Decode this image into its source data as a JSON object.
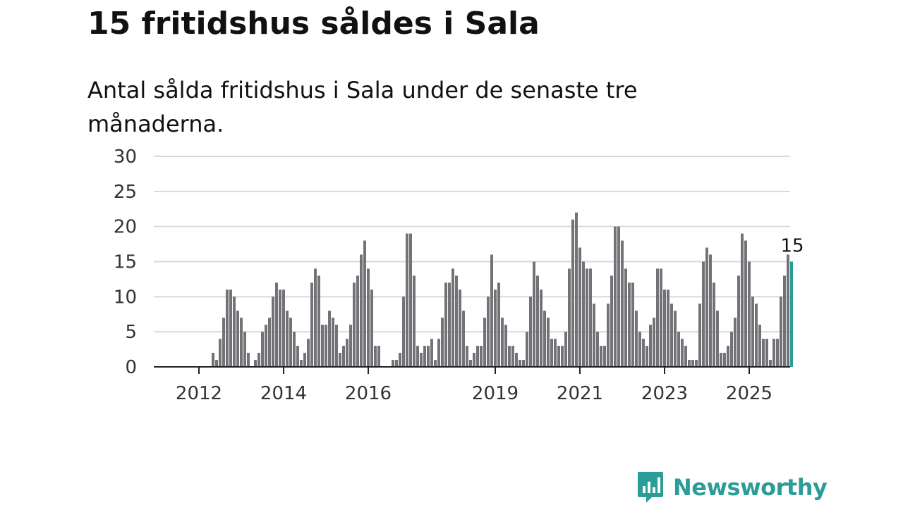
{
  "title": "15 fritidshus såldes i Sala",
  "subtitle": "Antal sålda fritidshus i Sala under de senaste tre månaderna.",
  "brand": {
    "name": "Newsworthy",
    "logo_icon": "newsworthy-chart-icon",
    "color": "#2a9d97"
  },
  "chart_data": {
    "type": "bar",
    "title": "15 fritidshus såldes i Sala",
    "subtitle": "Antal sålda fritidshus i Sala under de senaste tre månaderna.",
    "xlabel": "",
    "ylabel": "",
    "ylim": [
      0,
      30
    ],
    "yticks": [
      0,
      5,
      10,
      15,
      20,
      25,
      30
    ],
    "xtick_labels": [
      {
        "label": "2012",
        "index": 4
      },
      {
        "label": "2014",
        "index": 28
      },
      {
        "label": "2016",
        "index": 52
      },
      {
        "label": "2019",
        "index": 88
      },
      {
        "label": "2021",
        "index": 112
      },
      {
        "label": "2023",
        "index": 136
      },
      {
        "label": "2025",
        "index": 160
      }
    ],
    "grid": true,
    "legend": "none",
    "bar_color": "#737277",
    "highlight_color": "#2a9d97",
    "highlight_label": "15",
    "values": [
      0,
      0,
      0,
      0,
      0,
      0,
      0,
      0,
      2,
      1,
      4,
      7,
      11,
      11,
      10,
      8,
      7,
      5,
      2,
      0,
      1,
      2,
      5,
      6,
      7,
      10,
      12,
      11,
      11,
      8,
      7,
      5,
      3,
      1,
      2,
      4,
      12,
      14,
      13,
      6,
      6,
      8,
      7,
      6,
      2,
      3,
      4,
      6,
      12,
      13,
      16,
      18,
      14,
      11,
      3,
      3,
      0,
      0,
      0,
      1,
      1,
      2,
      10,
      19,
      19,
      13,
      3,
      2,
      3,
      3,
      4,
      1,
      4,
      7,
      12,
      12,
      14,
      13,
      11,
      8,
      3,
      1,
      2,
      3,
      3,
      7,
      10,
      16,
      11,
      12,
      7,
      6,
      3,
      3,
      2,
      1,
      1,
      5,
      10,
      15,
      13,
      11,
      8,
      7,
      4,
      4,
      3,
      3,
      5,
      14,
      21,
      22,
      17,
      15,
      14,
      14,
      9,
      5,
      3,
      3,
      9,
      13,
      20,
      20,
      18,
      14,
      12,
      12,
      8,
      5,
      4,
      3,
      6,
      7,
      14,
      14,
      11,
      11,
      9,
      8,
      5,
      4,
      3,
      1,
      1,
      1,
      9,
      15,
      17,
      16,
      12,
      8,
      2,
      2,
      3,
      5,
      7,
      13,
      19,
      18,
      15,
      10,
      9,
      6,
      4,
      4,
      1,
      4,
      4,
      10,
      13,
      16,
      15
    ]
  }
}
